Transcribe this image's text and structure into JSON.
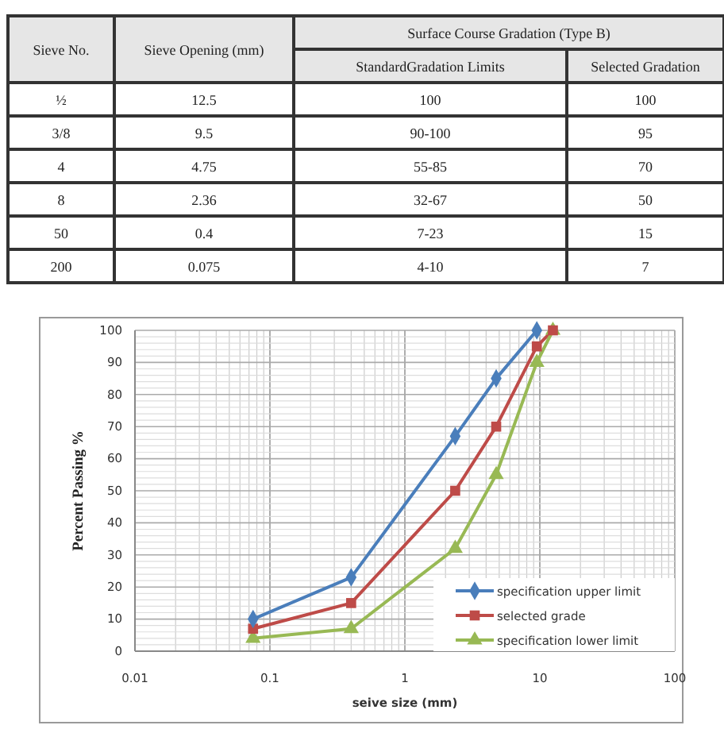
{
  "chart_data": [
    {
      "type": "other",
      "annotations": [
        "Sieve No.",
        "Sieve Opening (mm)",
        "Surface Course Gradation (Type B)",
        "StandardGradation Limits",
        "Selected Gradation",
        "½",
        "12.5",
        "100",
        "100",
        "3/8",
        "9.5",
        "90-100",
        "95",
        "4",
        "4.75",
        "55-85",
        "70",
        "8",
        "2.36",
        "32-67",
        "50",
        "50",
        "0.4",
        "7-23",
        "15",
        "200",
        "0.075",
        "4-10",
        "7"
      ]
    },
    {
      "type": "line",
      "xlabel": "seive size (mm)",
      "ylabel": "Percent Passing %",
      "log": "x",
      "grid": true,
      "legend": "bottom right",
      "line_style": "solid",
      "xlim": [
        0.01,
        100
      ],
      "xticks": [
        0.01,
        0.1,
        1,
        10,
        100
      ],
      "ylim": [
        0,
        100
      ],
      "yticks": [
        0,
        10,
        20,
        30,
        40,
        50,
        60,
        70,
        80,
        90,
        100
      ],
      "series": [
        {
          "name": "specification upper limit",
          "color": "#4a7ebb",
          "marker": "diamond",
          "x": [
            0.075,
            0.4,
            2.36,
            4.75,
            9.5
          ],
          "values": [
            10,
            23,
            67,
            85,
            100
          ]
        },
        {
          "name": "selected grade",
          "color": "#be4b48",
          "marker": "square",
          "x": [
            0.075,
            0.4,
            2.36,
            4.75,
            9.5,
            12.5
          ],
          "values": [
            7,
            15,
            50,
            70,
            95,
            100
          ]
        },
        {
          "name": "specification lower limit",
          "color": "#98b954",
          "marker": "triangle",
          "x": [
            0.075,
            0.4,
            2.36,
            4.75,
            9.5,
            12.5
          ],
          "values": [
            4,
            7,
            32,
            55,
            90,
            100
          ]
        }
      ]
    }
  ]
}
